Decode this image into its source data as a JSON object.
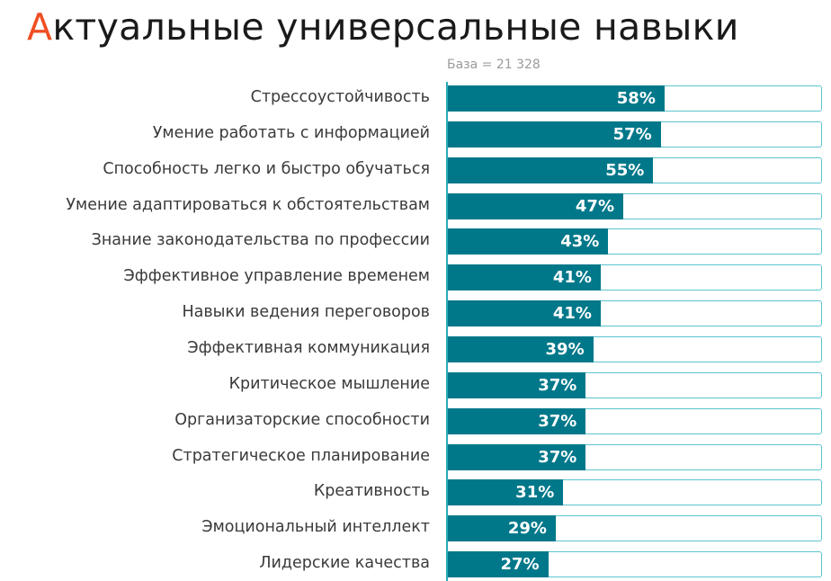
{
  "title_first_letter": "А",
  "title_rest": "ктуальные универсальные навыки",
  "colors": {
    "accent": "#f04e23",
    "bar": "#00788a",
    "outline": "#5bc4cf"
  },
  "chart_data": {
    "type": "bar",
    "orientation": "horizontal",
    "title": "Актуальные универсальные навыки",
    "subtitle": "База = 21 328",
    "xlim": [
      0,
      100
    ],
    "unit": "%",
    "categories": [
      "Стрессоустойчивость",
      "Умение работать с информацией",
      "Способность легко и быстро обучаться",
      "Умение адаптироваться к обстоятельствам",
      "Знание законодательства по профессии",
      "Эффективное управление временем",
      "Навыки ведения переговоров",
      "Эффективная коммуникация",
      "Критическое мышление",
      "Организаторские способности",
      "Стратегическое планирование",
      "Креативность",
      "Эмоциональный интеллект",
      "Лидерские качества"
    ],
    "values": [
      58,
      57,
      55,
      47,
      43,
      41,
      41,
      39,
      37,
      37,
      37,
      31,
      29,
      27
    ],
    "labels": [
      "58%",
      "57%",
      "55%",
      "47%",
      "43%",
      "41%",
      "41%",
      "39%",
      "37%",
      "37%",
      "37%",
      "31%",
      "29%",
      "27%"
    ]
  }
}
